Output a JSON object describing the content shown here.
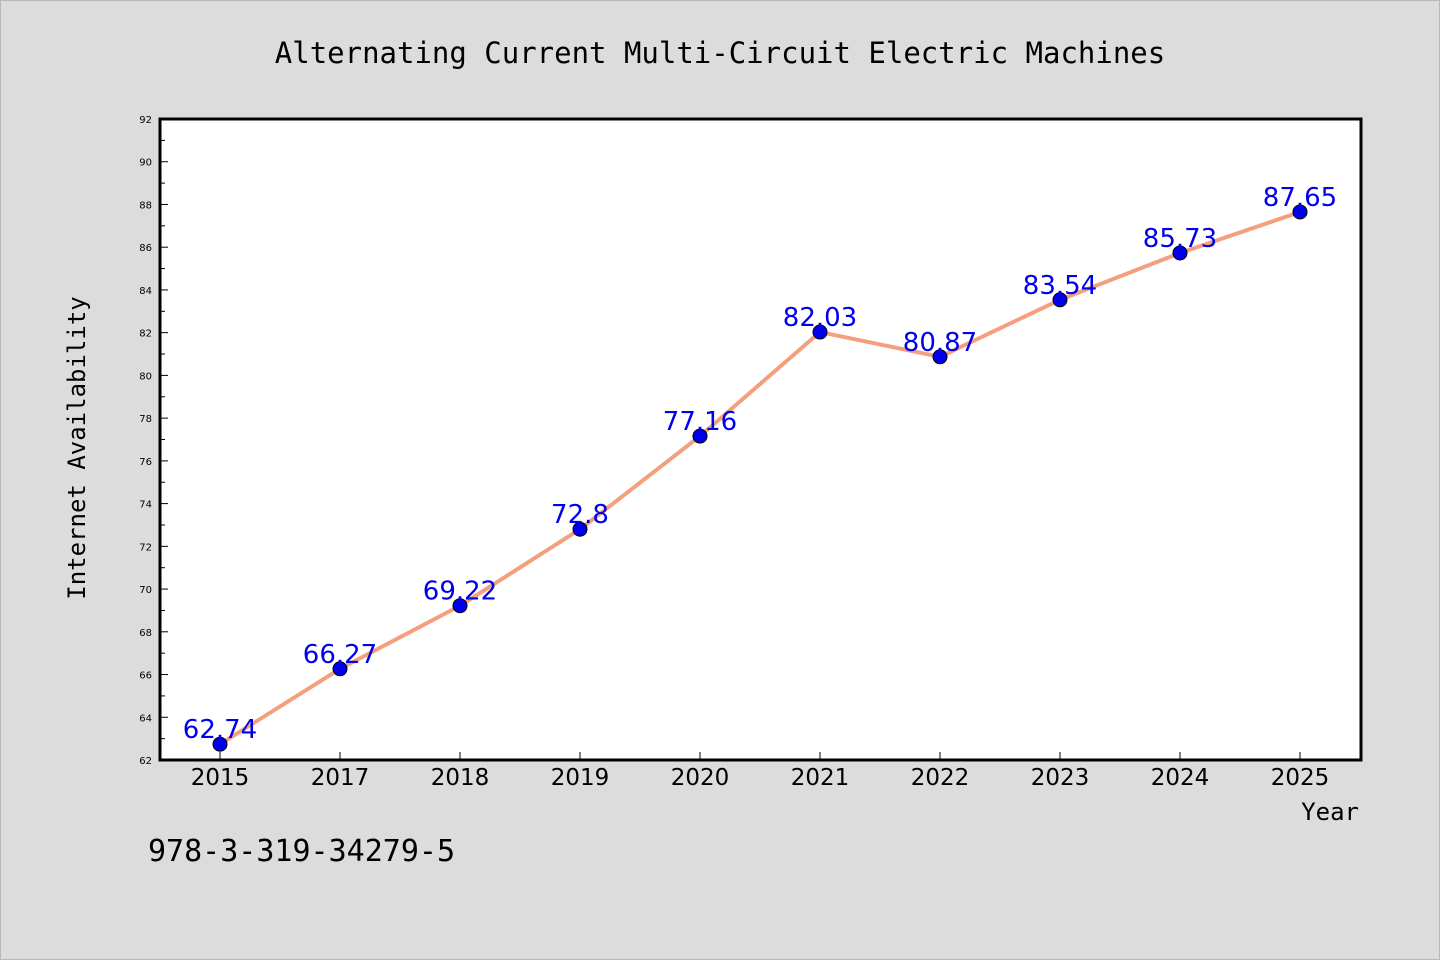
{
  "chart_data": {
    "type": "line",
    "title": "Alternating Current Multi-Circuit Electric Machines",
    "xlabel": "Year",
    "ylabel": "Internet Availability",
    "categories": [
      "2015",
      "2017",
      "2018",
      "2019",
      "2020",
      "2021",
      "2022",
      "2023",
      "2024",
      "2025"
    ],
    "series": [
      {
        "values": [
          62.74,
          66.27,
          69.22,
          72.8,
          77.16,
          82.03,
          80.87,
          83.54,
          85.73,
          87.65
        ]
      }
    ],
    "data_labels": [
      "62.74",
      "66.27",
      "69.22",
      "72.8",
      "77.16",
      "82.03",
      "80.87",
      "83.54",
      "85.73",
      "87.65"
    ],
    "ylim": [
      62,
      92
    ],
    "yticks": [
      62,
      64,
      66,
      68,
      70,
      72,
      74,
      76,
      78,
      80,
      82,
      84,
      86,
      88,
      90,
      92
    ],
    "grid": false,
    "legend": "none",
    "line_color": "#f4a07e",
    "marker_color": "#0000ee",
    "label_color": "#0000ee",
    "background_color": "#dcdcdc",
    "plot_background_color": "#ffffff"
  },
  "footer": {
    "isbn": "978-3-319-34279-5"
  }
}
